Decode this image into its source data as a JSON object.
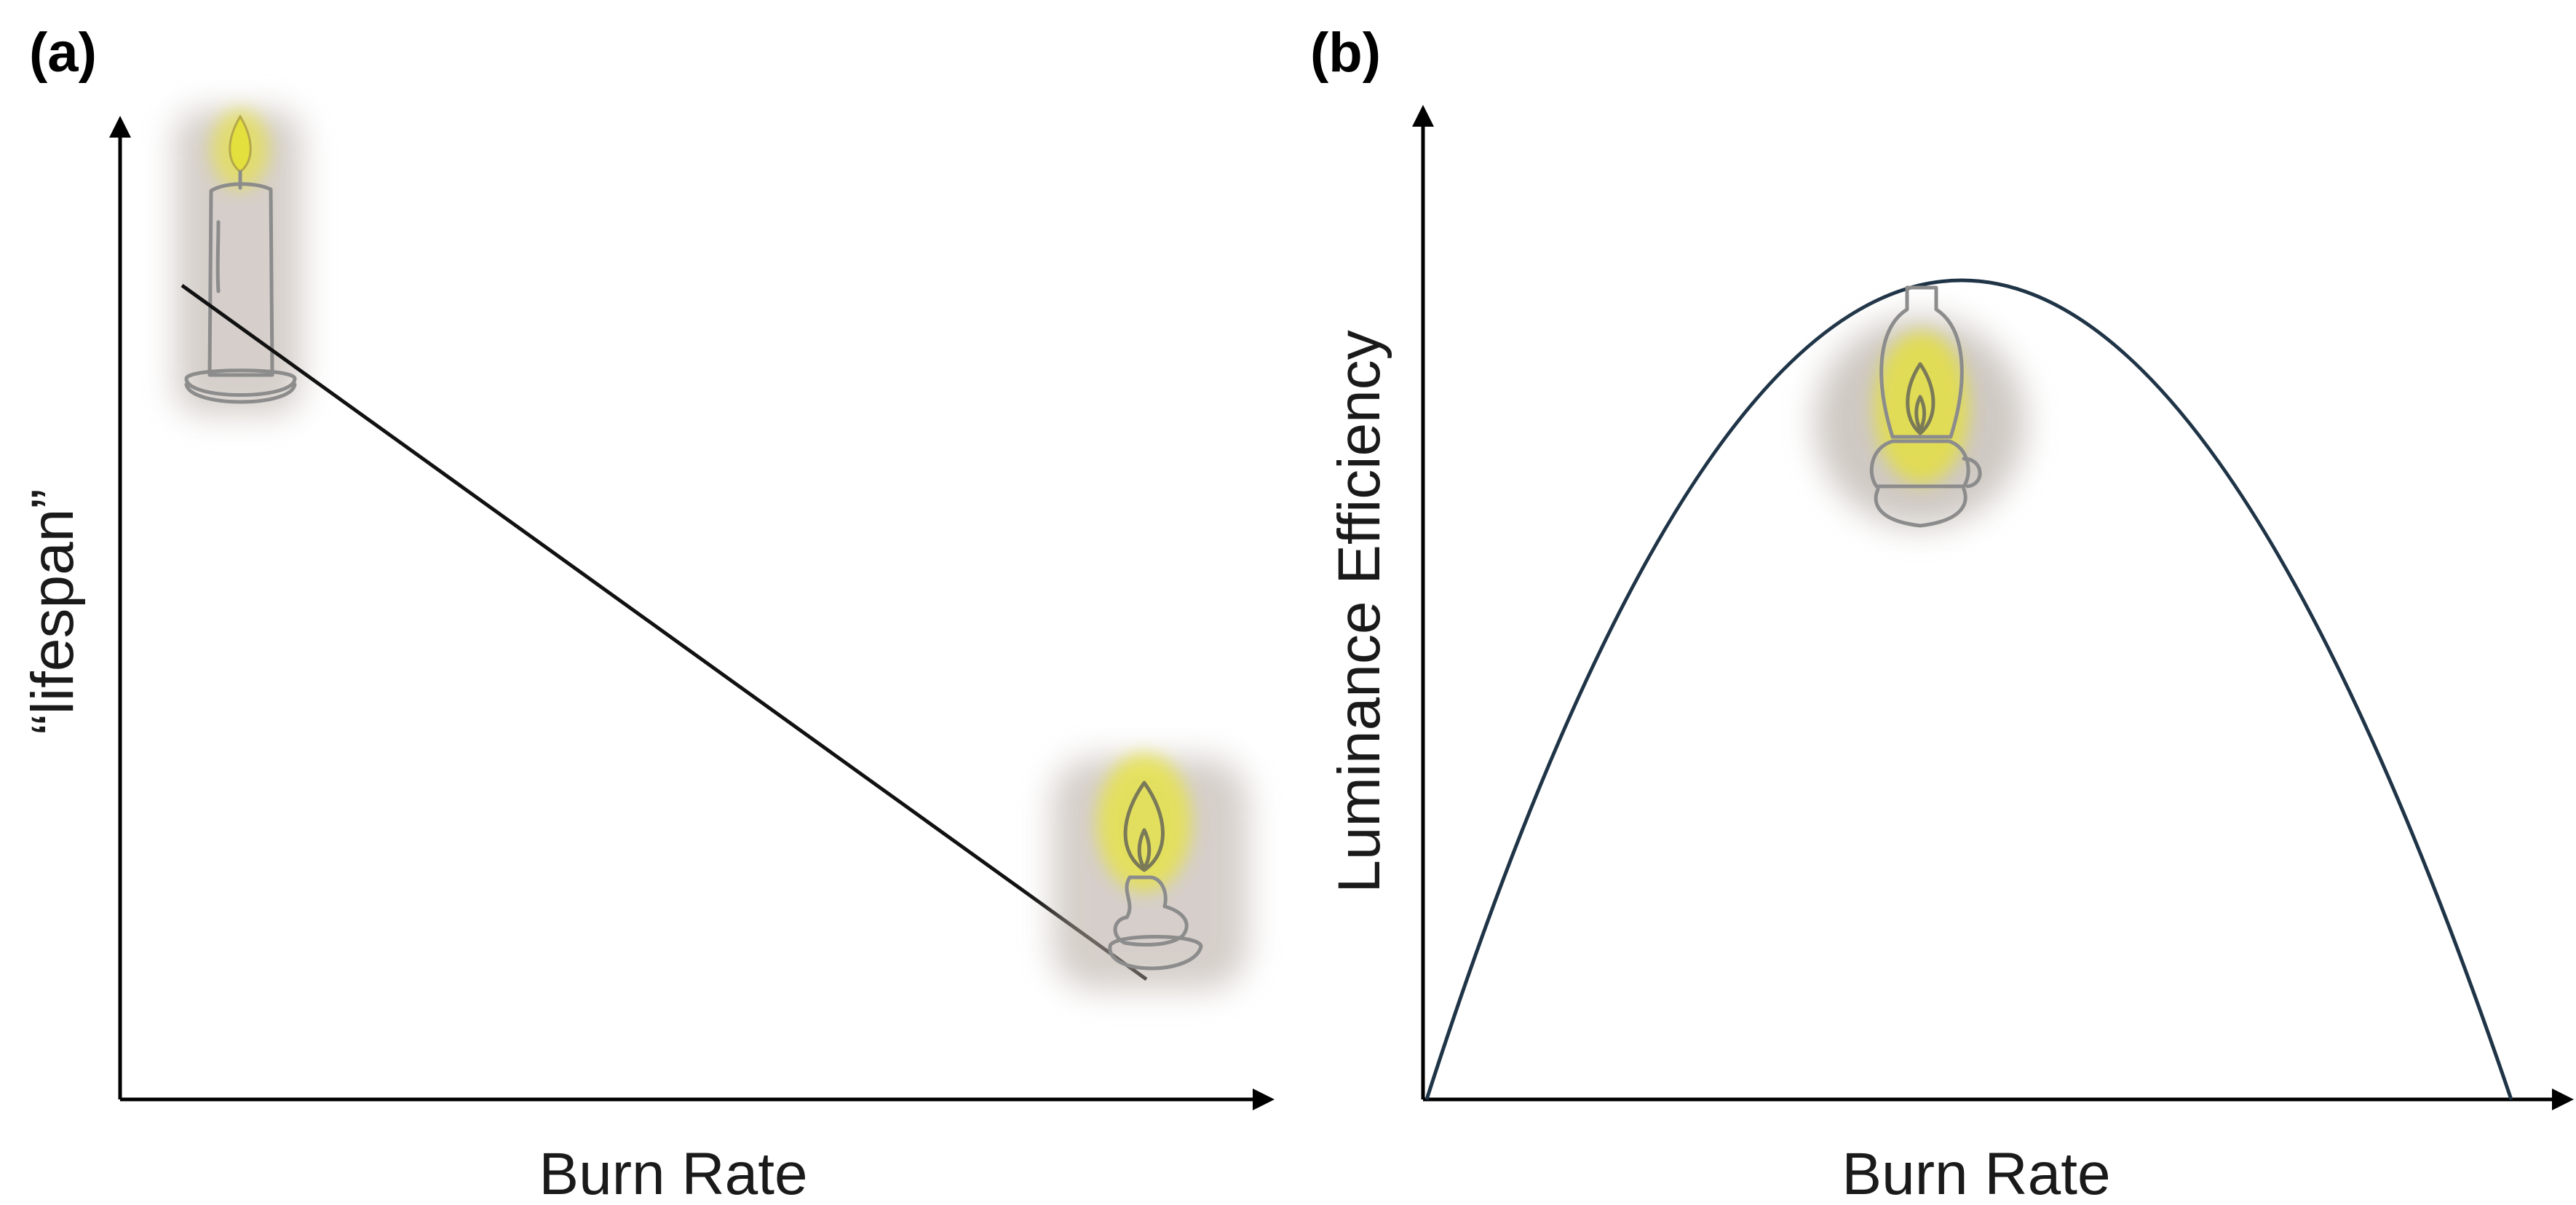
{
  "panel_a": {
    "label": "(a)",
    "xlabel": "Burn Rate",
    "ylabel": "“lifespan”",
    "line_color": "#111111",
    "icons": [
      "tall-candle-icon",
      "melted-candle-icon"
    ]
  },
  "panel_b": {
    "label": "(b)",
    "xlabel": "Burn Rate",
    "ylabel": "Luminance Efficiency",
    "curve_color": "#1f3447",
    "icons": [
      "oil-lamp-icon"
    ]
  },
  "colors": {
    "flame": "#e9e64a",
    "glow": "#cfcf34",
    "halo": "#a79c93",
    "sketch": "#8c8c8c"
  }
}
